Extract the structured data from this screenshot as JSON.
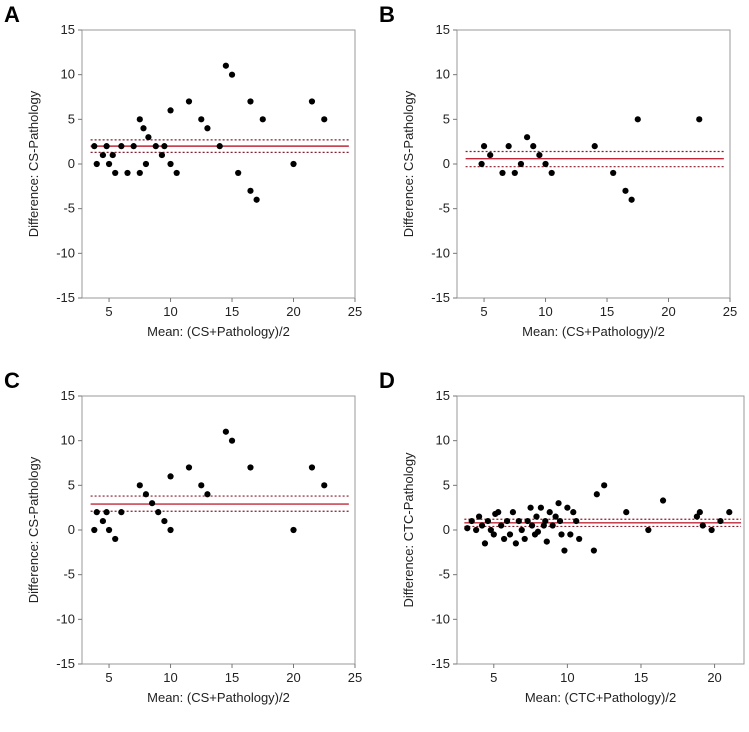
{
  "colors": {
    "mean_line": "#c0283a",
    "limit_line": "#8b1a2a",
    "point": "#000000",
    "frame": "#9a9a9a"
  },
  "chart_data": [
    {
      "panel": "A",
      "type": "scatter",
      "xlabel": "Mean: (CS+Pathology)/2",
      "ylabel": "Difference: CS-Pathology",
      "xlim": [
        2.8,
        25
      ],
      "ylim": [
        -15,
        15
      ],
      "xticks": [
        5,
        10,
        15,
        20,
        25
      ],
      "yticks": [
        15,
        10,
        5,
        0,
        -5,
        -10,
        -15
      ],
      "mean_diff": 2.0,
      "upper_limit": 2.7,
      "lower_limit": 1.3,
      "line_x": [
        3.5,
        24.5
      ],
      "points": [
        [
          3.8,
          2
        ],
        [
          4,
          0
        ],
        [
          4.5,
          1
        ],
        [
          4.8,
          2
        ],
        [
          5,
          0
        ],
        [
          5.3,
          1
        ],
        [
          5.5,
          -1
        ],
        [
          6,
          2
        ],
        [
          6.5,
          -1
        ],
        [
          7,
          2
        ],
        [
          7.5,
          5
        ],
        [
          7.5,
          -1
        ],
        [
          7.8,
          4
        ],
        [
          8,
          0
        ],
        [
          8.2,
          3
        ],
        [
          8.8,
          2
        ],
        [
          9.3,
          1
        ],
        [
          9.5,
          2
        ],
        [
          10,
          0
        ],
        [
          10,
          6
        ],
        [
          10.5,
          -1
        ],
        [
          11.5,
          7
        ],
        [
          12.5,
          5
        ],
        [
          13,
          4
        ],
        [
          14,
          2
        ],
        [
          14.5,
          11
        ],
        [
          15,
          10
        ],
        [
          15.5,
          -1
        ],
        [
          16.5,
          7
        ],
        [
          16.5,
          -3
        ],
        [
          17,
          -4
        ],
        [
          17.5,
          5
        ],
        [
          20,
          0
        ],
        [
          21.5,
          7
        ],
        [
          22.5,
          5
        ]
      ]
    },
    {
      "panel": "B",
      "type": "scatter",
      "xlabel": "Mean: (CS+Pathology)/2",
      "ylabel": "Difference: CS-Pathology",
      "xlim": [
        2.8,
        25
      ],
      "ylim": [
        -15,
        15
      ],
      "xticks": [
        5,
        10,
        15,
        20,
        25
      ],
      "yticks": [
        15,
        10,
        5,
        0,
        -5,
        -10,
        -15
      ],
      "mean_diff": 0.6,
      "upper_limit": 1.4,
      "lower_limit": -0.3,
      "line_x": [
        3.5,
        24.5
      ],
      "points": [
        [
          4.8,
          0
        ],
        [
          5,
          2
        ],
        [
          5.5,
          1
        ],
        [
          6.5,
          -1
        ],
        [
          7,
          2
        ],
        [
          7.5,
          -1
        ],
        [
          8,
          0
        ],
        [
          8.5,
          3
        ],
        [
          9,
          2
        ],
        [
          9.5,
          1
        ],
        [
          10,
          0
        ],
        [
          10.5,
          -1
        ],
        [
          14,
          2
        ],
        [
          15.5,
          -1
        ],
        [
          16.5,
          -3
        ],
        [
          17,
          -4
        ],
        [
          17.5,
          5
        ],
        [
          22.5,
          5
        ]
      ]
    },
    {
      "panel": "C",
      "type": "scatter",
      "xlabel": "Mean: (CS+Pathology)/2",
      "ylabel": "Difference: CS-Pathology",
      "xlim": [
        2.8,
        25
      ],
      "ylim": [
        -15,
        15
      ],
      "xticks": [
        5,
        10,
        15,
        20,
        25
      ],
      "yticks": [
        15,
        10,
        5,
        0,
        -5,
        -10,
        -15
      ],
      "mean_diff": 2.9,
      "upper_limit": 3.8,
      "lower_limit": 2.1,
      "line_x": [
        3.5,
        24.5
      ],
      "points": [
        [
          3.8,
          0
        ],
        [
          4,
          2
        ],
        [
          4.5,
          1
        ],
        [
          4.8,
          2
        ],
        [
          5,
          0
        ],
        [
          5.5,
          -1
        ],
        [
          6,
          2
        ],
        [
          7.5,
          5
        ],
        [
          8,
          4
        ],
        [
          8.5,
          3
        ],
        [
          9,
          2
        ],
        [
          9.5,
          1
        ],
        [
          10,
          0
        ],
        [
          10,
          6
        ],
        [
          11.5,
          7
        ],
        [
          12.5,
          5
        ],
        [
          13,
          4
        ],
        [
          14.5,
          11
        ],
        [
          15,
          10
        ],
        [
          16.5,
          7
        ],
        [
          20,
          0
        ],
        [
          21.5,
          7
        ],
        [
          22.5,
          5
        ]
      ]
    },
    {
      "panel": "D",
      "type": "scatter",
      "xlabel": "Mean: (CTC+Pathology)/2",
      "ylabel": "Difference: CTC-Pathology",
      "xlim": [
        2.5,
        22
      ],
      "ylim": [
        -15,
        15
      ],
      "xticks": [
        5,
        10,
        15,
        20
      ],
      "yticks": [
        15,
        10,
        5,
        0,
        -5,
        -10,
        -15
      ],
      "mean_diff": 0.8,
      "upper_limit": 1.2,
      "lower_limit": 0.4,
      "line_x": [
        3,
        21.8
      ],
      "points": [
        [
          3.2,
          0.2
        ],
        [
          3.5,
          1
        ],
        [
          3.8,
          0
        ],
        [
          4,
          1.5
        ],
        [
          4.2,
          0.5
        ],
        [
          4.4,
          -1.5
        ],
        [
          4.6,
          1
        ],
        [
          4.8,
          0
        ],
        [
          5,
          -0.5
        ],
        [
          5.1,
          1.8
        ],
        [
          5.3,
          2
        ],
        [
          5.5,
          0.5
        ],
        [
          5.7,
          -1
        ],
        [
          5.9,
          1
        ],
        [
          6.1,
          -0.5
        ],
        [
          6.3,
          2
        ],
        [
          6.5,
          -1.5
        ],
        [
          6.7,
          1
        ],
        [
          6.9,
          0
        ],
        [
          7.1,
          -1
        ],
        [
          7.3,
          1
        ],
        [
          7.5,
          2.5
        ],
        [
          7.6,
          0.5
        ],
        [
          7.8,
          -0.5
        ],
        [
          7.9,
          1.5
        ],
        [
          8,
          -0.2
        ],
        [
          8.2,
          2.5
        ],
        [
          8.4,
          0.5
        ],
        [
          8.5,
          1
        ],
        [
          8.6,
          -1.3
        ],
        [
          8.8,
          2
        ],
        [
          9,
          0.5
        ],
        [
          9.2,
          1.5
        ],
        [
          9.4,
          3
        ],
        [
          9.5,
          1
        ],
        [
          9.6,
          -0.5
        ],
        [
          9.8,
          -2.3
        ],
        [
          10,
          2.5
        ],
        [
          10.2,
          -0.5
        ],
        [
          10.4,
          2
        ],
        [
          10.6,
          1
        ],
        [
          10.8,
          -1
        ],
        [
          11.8,
          -2.3
        ],
        [
          12,
          4
        ],
        [
          12.5,
          5
        ],
        [
          14,
          2
        ],
        [
          15.5,
          0
        ],
        [
          16.5,
          3.3
        ],
        [
          18.8,
          1.5
        ],
        [
          19,
          2
        ],
        [
          19.2,
          0.5
        ],
        [
          19.8,
          0
        ],
        [
          20.4,
          1
        ],
        [
          21,
          2
        ]
      ]
    }
  ]
}
